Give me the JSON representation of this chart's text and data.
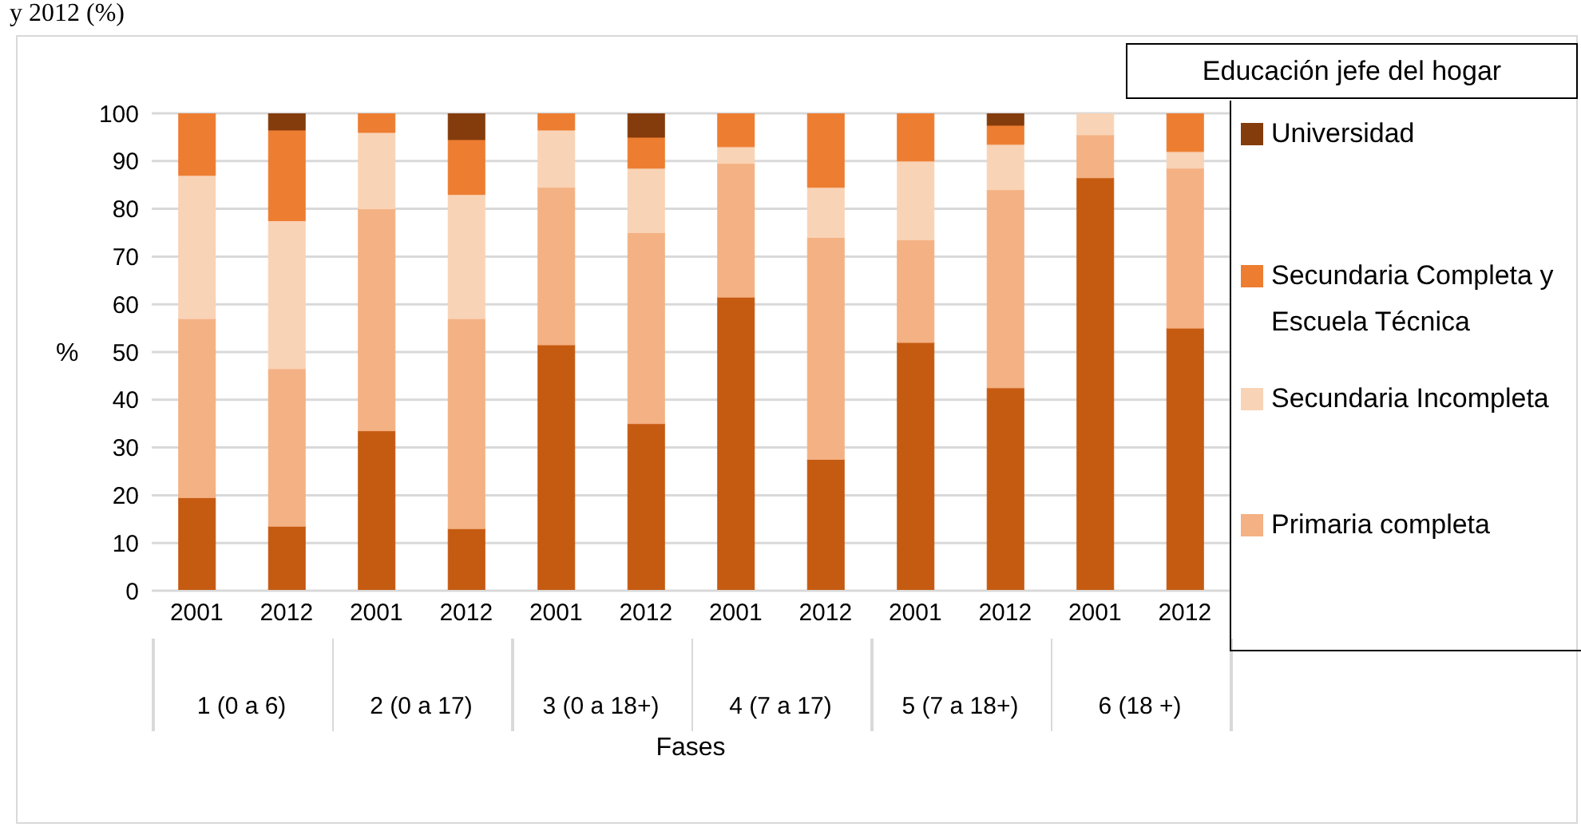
{
  "chart_data": {
    "type": "bar",
    "stacked": true,
    "title": "y 2012 (%)",
    "ylabel": "%",
    "xlabel": "Fases",
    "legend_title": "Educación jefe del hogar",
    "legend": "right",
    "categories": [
      "2001",
      "2012",
      "2001",
      "2012",
      "2001",
      "2012",
      "2001",
      "2012",
      "2001",
      "2012",
      "2001",
      "2012"
    ],
    "annotations": [
      "1 (0 a 6)",
      "2 (0 a 17)",
      "3 (0 a 18+)",
      "4 (7 a 17)",
      "5 (7 a 18+)",
      "6 (18 +)"
    ],
    "ylim": [
      0,
      100
    ],
    "yticks": [
      0,
      10,
      20,
      30,
      40,
      50,
      60,
      70,
      80,
      90,
      100
    ],
    "grid": "y",
    "series": [
      {
        "color": "#c55a11",
        "values": [
          19.5,
          13.5,
          33.5,
          13,
          51.5,
          35,
          61.5,
          27.5,
          52,
          42.5,
          86.5,
          55
        ]
      },
      {
        "name": "Primaria completa",
        "color": "#f4b183",
        "values": [
          37.5,
          33,
          46.5,
          44,
          33,
          40,
          28,
          46.5,
          21.5,
          41.5,
          9,
          33.5
        ]
      },
      {
        "name": "Secundaria Incompleta",
        "color": "#f9d3b6",
        "values": [
          30,
          31,
          16,
          26,
          12,
          13.5,
          3.5,
          10.5,
          16.5,
          9.5,
          4.5,
          3.5
        ]
      },
      {
        "name": "Secundaria Completa y Escuela Técnica",
        "color": "#ed7d31",
        "values": [
          13,
          19,
          4,
          11.5,
          3.5,
          6.5,
          7,
          15.5,
          10,
          4,
          0,
          8
        ]
      },
      {
        "name": "Universidad",
        "color": "#843c0c",
        "values": [
          0,
          3.5,
          0,
          5.5,
          0,
          5,
          0,
          0,
          0,
          2.5,
          0,
          0
        ]
      }
    ]
  }
}
